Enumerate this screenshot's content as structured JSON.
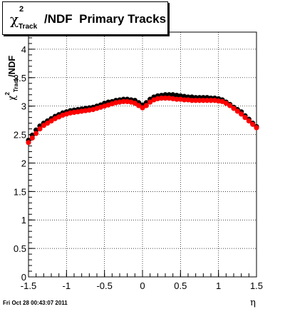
{
  "chart_data": {
    "type": "scatter",
    "title": {
      "symbol": "χ",
      "sup": "2",
      "sub": "Track",
      "rest": "/NDF  Primary Tracks"
    },
    "ylabel": {
      "symbol": "χ",
      "sup": "2",
      "sub": "Track",
      "rest": "/NDF"
    },
    "xlabel": "η",
    "xlim": [
      -1.5,
      1.5
    ],
    "ylim": [
      0,
      4.3
    ],
    "x_ticks": [
      "-1.5",
      "-1",
      "-0.5",
      "0",
      "0.5",
      "1",
      "1.5"
    ],
    "x_tick_values": [
      -1.5,
      -1,
      -0.5,
      0,
      0.5,
      1,
      1.5
    ],
    "y_ticks": [
      "0",
      "0.5",
      "1",
      "1.5",
      "2",
      "2.5",
      "3",
      "3.5",
      "4"
    ],
    "y_tick_values": [
      0,
      0.5,
      1,
      1.5,
      2,
      2.5,
      3,
      3.5,
      4
    ],
    "grid": true,
    "series": [
      {
        "color": "#000000",
        "points": [
          [
            -1.5,
            2.4
          ],
          [
            -1.45,
            2.49
          ],
          [
            -1.4,
            2.58
          ],
          [
            -1.35,
            2.65
          ],
          [
            -1.3,
            2.7
          ],
          [
            -1.25,
            2.74
          ],
          [
            -1.2,
            2.78
          ],
          [
            -1.15,
            2.82
          ],
          [
            -1.1,
            2.85
          ],
          [
            -1.05,
            2.88
          ],
          [
            -1.0,
            2.9
          ],
          [
            -0.95,
            2.92
          ],
          [
            -0.9,
            2.93
          ],
          [
            -0.85,
            2.94
          ],
          [
            -0.8,
            2.95
          ],
          [
            -0.75,
            2.96
          ],
          [
            -0.7,
            2.97
          ],
          [
            -0.65,
            2.98
          ],
          [
            -0.6,
            3.0
          ],
          [
            -0.55,
            3.02
          ],
          [
            -0.5,
            3.05
          ],
          [
            -0.45,
            3.07
          ],
          [
            -0.4,
            3.08
          ],
          [
            -0.35,
            3.1
          ],
          [
            -0.3,
            3.11
          ],
          [
            -0.25,
            3.12
          ],
          [
            -0.2,
            3.12
          ],
          [
            -0.15,
            3.11
          ],
          [
            -0.1,
            3.1
          ],
          [
            -0.05,
            3.06
          ],
          [
            0.0,
            3.02
          ],
          [
            0.05,
            3.06
          ],
          [
            0.1,
            3.12
          ],
          [
            0.15,
            3.16
          ],
          [
            0.2,
            3.18
          ],
          [
            0.25,
            3.19
          ],
          [
            0.3,
            3.2
          ],
          [
            0.35,
            3.2
          ],
          [
            0.4,
            3.2
          ],
          [
            0.45,
            3.19
          ],
          [
            0.5,
            3.18
          ],
          [
            0.55,
            3.17
          ],
          [
            0.6,
            3.16
          ],
          [
            0.65,
            3.16
          ],
          [
            0.7,
            3.15
          ],
          [
            0.75,
            3.15
          ],
          [
            0.8,
            3.15
          ],
          [
            0.85,
            3.15
          ],
          [
            0.9,
            3.14
          ],
          [
            0.95,
            3.14
          ],
          [
            1.0,
            3.13
          ],
          [
            1.05,
            3.11
          ],
          [
            1.1,
            3.07
          ],
          [
            1.15,
            3.03
          ],
          [
            1.2,
            2.98
          ],
          [
            1.25,
            2.94
          ],
          [
            1.3,
            2.9
          ],
          [
            1.35,
            2.83
          ],
          [
            1.4,
            2.77
          ],
          [
            1.45,
            2.7
          ],
          [
            1.5,
            2.64
          ]
        ]
      },
      {
        "color": "#ff0000",
        "points": [
          [
            -1.5,
            2.36
          ],
          [
            -1.45,
            2.44
          ],
          [
            -1.4,
            2.52
          ],
          [
            -1.35,
            2.6
          ],
          [
            -1.3,
            2.66
          ],
          [
            -1.25,
            2.7
          ],
          [
            -1.2,
            2.74
          ],
          [
            -1.15,
            2.78
          ],
          [
            -1.1,
            2.81
          ],
          [
            -1.05,
            2.84
          ],
          [
            -1.0,
            2.86
          ],
          [
            -0.95,
            2.88
          ],
          [
            -0.9,
            2.89
          ],
          [
            -0.85,
            2.9
          ],
          [
            -0.8,
            2.91
          ],
          [
            -0.75,
            2.92
          ],
          [
            -0.7,
            2.93
          ],
          [
            -0.65,
            2.94
          ],
          [
            -0.6,
            2.96
          ],
          [
            -0.55,
            2.98
          ],
          [
            -0.5,
            3.0
          ],
          [
            -0.45,
            3.02
          ],
          [
            -0.4,
            3.04
          ],
          [
            -0.35,
            3.06
          ],
          [
            -0.3,
            3.07
          ],
          [
            -0.25,
            3.08
          ],
          [
            -0.2,
            3.08
          ],
          [
            -0.15,
            3.07
          ],
          [
            -0.1,
            3.05
          ],
          [
            -0.05,
            3.01
          ],
          [
            0.0,
            2.97
          ],
          [
            0.05,
            3.01
          ],
          [
            0.1,
            3.07
          ],
          [
            0.15,
            3.11
          ],
          [
            0.2,
            3.13
          ],
          [
            0.25,
            3.14
          ],
          [
            0.3,
            3.14
          ],
          [
            0.35,
            3.14
          ],
          [
            0.4,
            3.13
          ],
          [
            0.45,
            3.12
          ],
          [
            0.5,
            3.12
          ],
          [
            0.55,
            3.11
          ],
          [
            0.6,
            3.11
          ],
          [
            0.65,
            3.1
          ],
          [
            0.7,
            3.1
          ],
          [
            0.75,
            3.1
          ],
          [
            0.8,
            3.1
          ],
          [
            0.85,
            3.1
          ],
          [
            0.9,
            3.1
          ],
          [
            0.95,
            3.1
          ],
          [
            1.0,
            3.09
          ],
          [
            1.05,
            3.08
          ],
          [
            1.1,
            3.05
          ],
          [
            1.15,
            3.01
          ],
          [
            1.2,
            2.96
          ],
          [
            1.25,
            2.91
          ],
          [
            1.3,
            2.86
          ],
          [
            1.35,
            2.8
          ],
          [
            1.4,
            2.74
          ],
          [
            1.45,
            2.68
          ],
          [
            1.5,
            2.62
          ]
        ]
      }
    ]
  },
  "footer": {
    "timestamp": "Fri Oct 28 00:43:07 2011"
  }
}
